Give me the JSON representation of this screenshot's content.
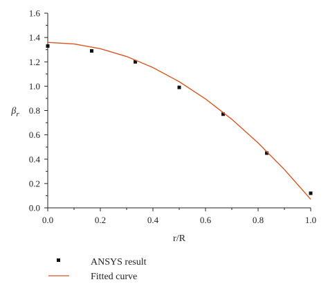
{
  "chart_data": {
    "type": "scatter",
    "title": "",
    "xlabel": "r/R",
    "ylabel": "β",
    "ylabel_subscript": "r",
    "xlim": [
      0.0,
      1.0
    ],
    "ylim": [
      0.0,
      1.6
    ],
    "xticks": [
      0.0,
      0.2,
      0.4,
      0.6,
      0.8,
      1.0
    ],
    "xtick_labels": [
      "0.0",
      "0.2",
      "0.4",
      "0.6",
      "0.8",
      "1.0"
    ],
    "yticks": [
      0.0,
      0.2,
      0.4,
      0.6,
      0.8,
      1.0,
      1.2,
      1.4,
      1.6
    ],
    "ytick_labels": [
      "0.0",
      "0.2",
      "0.4",
      "0.6",
      "0.8",
      "1.0",
      "1.2",
      "1.4",
      "1.6"
    ],
    "grid": false,
    "legend_position": "bottom",
    "series": [
      {
        "name": "ANSYS result",
        "kind": "scatter",
        "marker": "square",
        "color": "#111111",
        "points": [
          {
            "x": 0.0,
            "y": 1.33
          },
          {
            "x": 0.167,
            "y": 1.29
          },
          {
            "x": 0.333,
            "y": 1.2
          },
          {
            "x": 0.5,
            "y": 0.99
          },
          {
            "x": 0.667,
            "y": 0.77
          },
          {
            "x": 0.833,
            "y": 0.45
          },
          {
            "x": 1.0,
            "y": 0.12
          }
        ]
      },
      {
        "name": "Fitted curve",
        "kind": "line",
        "color": "#d9541e",
        "points": [
          {
            "x": 0.0,
            "y": 1.36
          },
          {
            "x": 0.1,
            "y": 1.347
          },
          {
            "x": 0.2,
            "y": 1.308
          },
          {
            "x": 0.3,
            "y": 1.244
          },
          {
            "x": 0.4,
            "y": 1.153
          },
          {
            "x": 0.5,
            "y": 1.037
          },
          {
            "x": 0.6,
            "y": 0.895
          },
          {
            "x": 0.7,
            "y": 0.728
          },
          {
            "x": 0.8,
            "y": 0.534
          },
          {
            "x": 0.9,
            "y": 0.315
          },
          {
            "x": 1.0,
            "y": 0.07
          }
        ]
      }
    ]
  }
}
